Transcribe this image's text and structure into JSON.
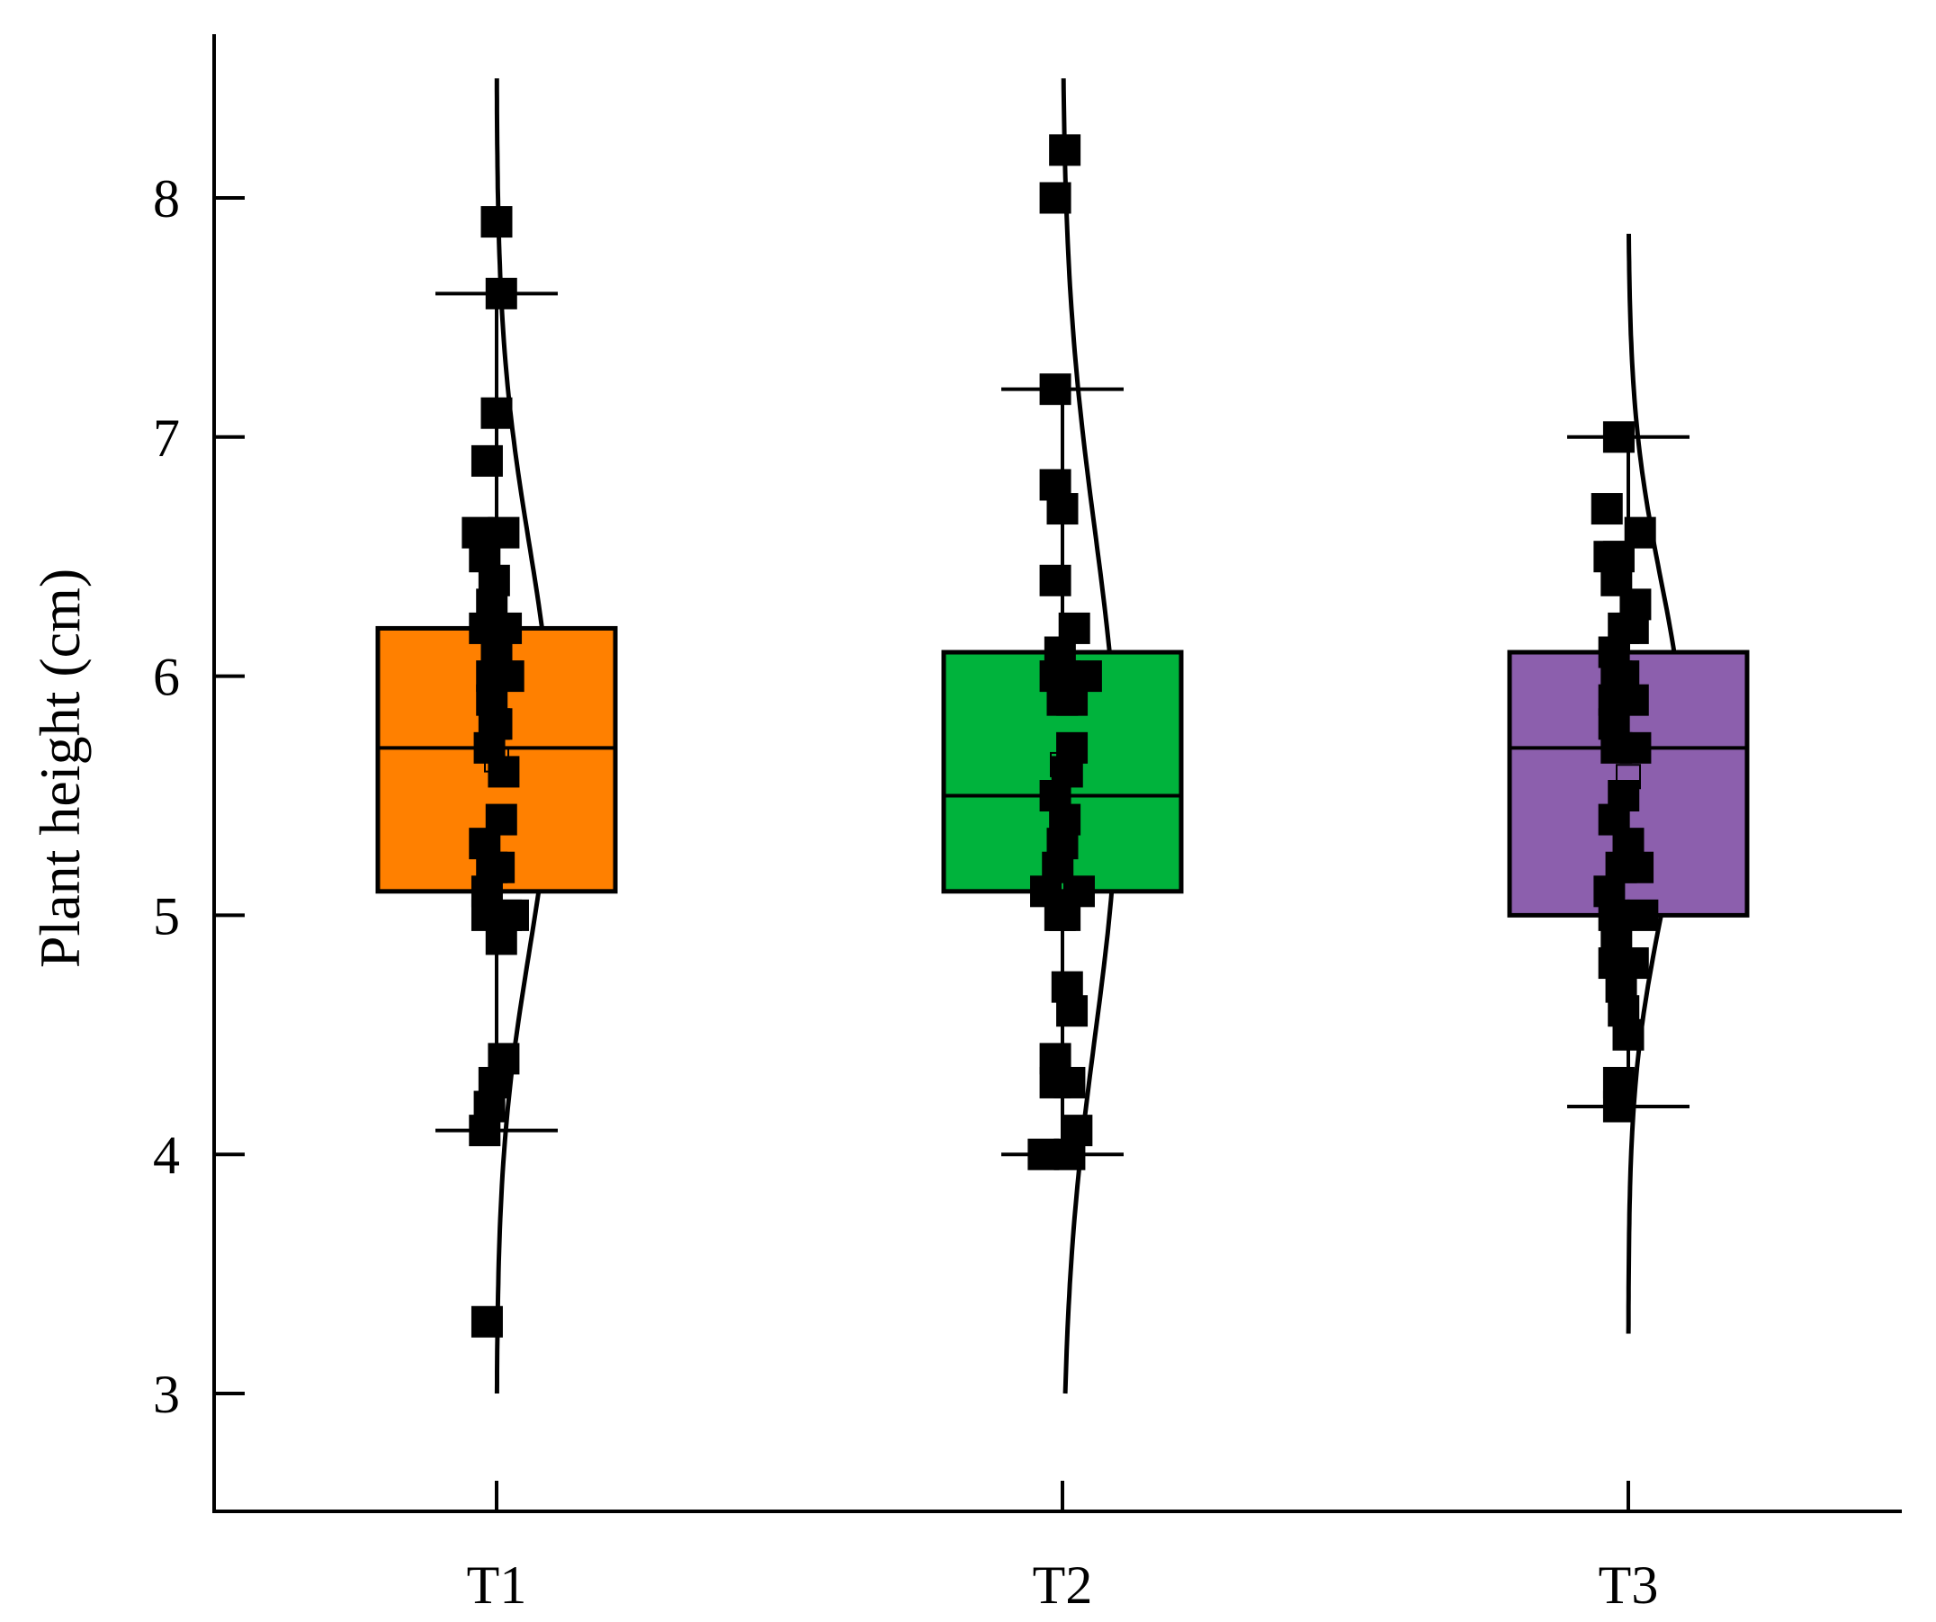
{
  "chart_data": {
    "type": "box",
    "ylabel": "Plant height (cm)",
    "xlabel": "",
    "ylim": [
      2.5,
      8.7
    ],
    "yticks": [
      3,
      4,
      5,
      6,
      7,
      8
    ],
    "categories": [
      "T1",
      "T2",
      "T3"
    ],
    "colors": [
      "#ff8000",
      "#00b33c",
      "#8c5fad"
    ],
    "boxes": [
      {
        "category": "T1",
        "q1": 5.1,
        "median": 5.7,
        "q3": 6.2,
        "whisker_low": 4.1,
        "whisker_high": 7.6,
        "mean": 5.65,
        "curve": {
          "mean": 5.7,
          "sd": 0.85,
          "ymin": 3.0,
          "ymax": 8.5
        }
      },
      {
        "category": "T2",
        "q1": 5.1,
        "median": 5.5,
        "q3": 6.1,
        "whisker_low": 4.0,
        "whisker_high": 7.2,
        "mean": 5.63,
        "curve": {
          "mean": 5.55,
          "sd": 1.05,
          "ymin": 3.0,
          "ymax": 8.5
        }
      },
      {
        "category": "T3",
        "q1": 5.0,
        "median": 5.7,
        "q3": 6.1,
        "whisker_low": 4.2,
        "whisker_high": 7.0,
        "mean": 5.58,
        "curve": {
          "mean": 5.7,
          "sd": 0.7,
          "ymin": 3.25,
          "ymax": 7.85
        }
      }
    ],
    "points": [
      {
        "category": "T1",
        "values": [
          {
            "y": 7.9,
            "dx": 0.0
          },
          {
            "y": 7.6,
            "dx": 0.02
          },
          {
            "y": 7.1,
            "dx": 0.0
          },
          {
            "y": 6.9,
            "dx": -0.04
          },
          {
            "y": 6.6,
            "dx": -0.08
          },
          {
            "y": 6.6,
            "dx": 0.03
          },
          {
            "y": 6.5,
            "dx": -0.05
          },
          {
            "y": 6.4,
            "dx": -0.01
          },
          {
            "y": 6.3,
            "dx": -0.02
          },
          {
            "y": 6.2,
            "dx": -0.05
          },
          {
            "y": 6.2,
            "dx": 0.04
          },
          {
            "y": 6.1,
            "dx": 0.0
          },
          {
            "y": 6.0,
            "dx": -0.02
          },
          {
            "y": 6.0,
            "dx": 0.05
          },
          {
            "y": 5.9,
            "dx": -0.02
          },
          {
            "y": 5.8,
            "dx": 0.0
          },
          {
            "y": 5.8,
            "dx": -0.01
          },
          {
            "y": 5.7,
            "dx": -0.03
          },
          {
            "y": 5.6,
            "dx": 0.03
          },
          {
            "y": 5.4,
            "dx": 0.02
          },
          {
            "y": 5.3,
            "dx": -0.05
          },
          {
            "y": 5.2,
            "dx": -0.02
          },
          {
            "y": 5.2,
            "dx": 0.01
          },
          {
            "y": 5.1,
            "dx": -0.04
          },
          {
            "y": 5.0,
            "dx": -0.04
          },
          {
            "y": 5.0,
            "dx": 0.04
          },
          {
            "y": 5.0,
            "dx": 0.07
          },
          {
            "y": 4.9,
            "dx": 0.02
          },
          {
            "y": 4.4,
            "dx": 0.03
          },
          {
            "y": 4.3,
            "dx": -0.01
          },
          {
            "y": 4.2,
            "dx": -0.03
          },
          {
            "y": 4.1,
            "dx": -0.05
          },
          {
            "y": 3.3,
            "dx": -0.04
          }
        ]
      },
      {
        "category": "T2",
        "values": [
          {
            "y": 8.2,
            "dx": 0.01
          },
          {
            "y": 8.0,
            "dx": -0.03
          },
          {
            "y": 7.2,
            "dx": -0.03
          },
          {
            "y": 6.8,
            "dx": -0.03
          },
          {
            "y": 6.7,
            "dx": 0.0
          },
          {
            "y": 6.4,
            "dx": -0.03
          },
          {
            "y": 6.2,
            "dx": 0.05
          },
          {
            "y": 6.1,
            "dx": -0.01
          },
          {
            "y": 6.0,
            "dx": -0.03
          },
          {
            "y": 6.0,
            "dx": 0.01
          },
          {
            "y": 6.0,
            "dx": 0.1
          },
          {
            "y": 5.9,
            "dx": 0.0
          },
          {
            "y": 5.9,
            "dx": 0.04
          },
          {
            "y": 5.7,
            "dx": 0.04
          },
          {
            "y": 5.6,
            "dx": 0.02
          },
          {
            "y": 5.5,
            "dx": -0.03
          },
          {
            "y": 5.4,
            "dx": 0.01
          },
          {
            "y": 5.3,
            "dx": 0.0
          },
          {
            "y": 5.2,
            "dx": -0.02
          },
          {
            "y": 5.1,
            "dx": -0.07
          },
          {
            "y": 5.1,
            "dx": 0.07
          },
          {
            "y": 5.0,
            "dx": -0.01
          },
          {
            "y": 5.0,
            "dx": 0.01
          },
          {
            "y": 4.7,
            "dx": 0.02
          },
          {
            "y": 4.6,
            "dx": 0.04
          },
          {
            "y": 4.4,
            "dx": -0.03
          },
          {
            "y": 4.3,
            "dx": -0.03
          },
          {
            "y": 4.3,
            "dx": 0.03
          },
          {
            "y": 4.1,
            "dx": 0.06
          },
          {
            "y": 4.0,
            "dx": -0.08
          },
          {
            "y": 4.0,
            "dx": 0.03
          }
        ]
      },
      {
        "category": "T3",
        "values": [
          {
            "y": 7.0,
            "dx": -0.04
          },
          {
            "y": 6.7,
            "dx": -0.09
          },
          {
            "y": 6.6,
            "dx": 0.05
          },
          {
            "y": 6.5,
            "dx": -0.08
          },
          {
            "y": 6.5,
            "dx": -0.04
          },
          {
            "y": 6.4,
            "dx": -0.05
          },
          {
            "y": 6.3,
            "dx": 0.03
          },
          {
            "y": 6.2,
            "dx": -0.02
          },
          {
            "y": 6.2,
            "dx": 0.02
          },
          {
            "y": 6.1,
            "dx": -0.06
          },
          {
            "y": 6.0,
            "dx": -0.05
          },
          {
            "y": 6.0,
            "dx": -0.02
          },
          {
            "y": 5.9,
            "dx": -0.06
          },
          {
            "y": 5.9,
            "dx": 0.02
          },
          {
            "y": 5.8,
            "dx": -0.06
          },
          {
            "y": 5.7,
            "dx": -0.05
          },
          {
            "y": 5.7,
            "dx": 0.03
          },
          {
            "y": 5.5,
            "dx": -0.02
          },
          {
            "y": 5.4,
            "dx": -0.06
          },
          {
            "y": 5.3,
            "dx": 0.0
          },
          {
            "y": 5.2,
            "dx": -0.03
          },
          {
            "y": 5.2,
            "dx": 0.04
          },
          {
            "y": 5.1,
            "dx": -0.08
          },
          {
            "y": 5.0,
            "dx": -0.06
          },
          {
            "y": 5.0,
            "dx": 0.06
          },
          {
            "y": 4.9,
            "dx": -0.05
          },
          {
            "y": 4.8,
            "dx": -0.06
          },
          {
            "y": 4.8,
            "dx": 0.02
          },
          {
            "y": 4.7,
            "dx": -0.03
          },
          {
            "y": 4.6,
            "dx": -0.02
          },
          {
            "y": 4.5,
            "dx": 0.0
          },
          {
            "y": 4.3,
            "dx": -0.04
          },
          {
            "y": 4.2,
            "dx": -0.04
          }
        ]
      }
    ]
  }
}
